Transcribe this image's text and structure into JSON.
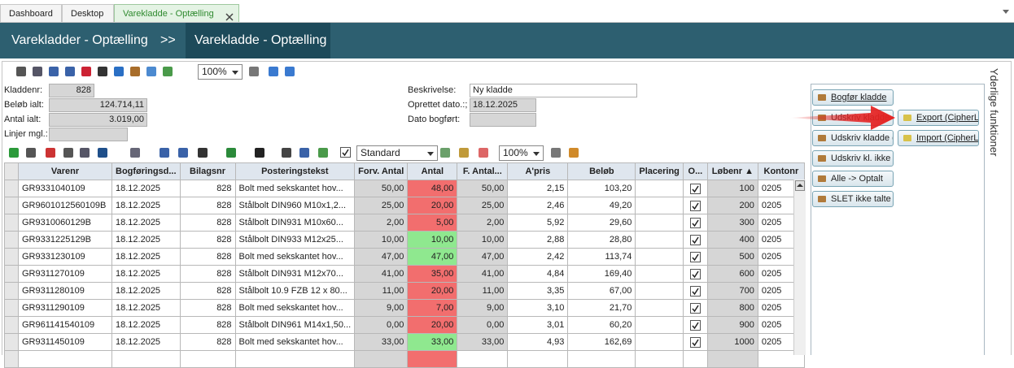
{
  "tabs": [
    {
      "label": "Dashboard"
    },
    {
      "label": "Desktop"
    },
    {
      "label": "Varekladde - Optælling",
      "active": true
    }
  ],
  "breadcrumb": {
    "parent": "Varekladder - Optælling",
    "separator": ">>",
    "current": "Varekladde - Optælling"
  },
  "toolbar": {
    "zoom": "100%"
  },
  "form": {
    "left": [
      {
        "label": "Kladdenr:",
        "value": "828"
      },
      {
        "label": "Beløb ialt:",
        "value": "124.714,11"
      },
      {
        "label": "Antal ialt:",
        "value": "3.019,00"
      },
      {
        "label": "Linjer mgl.:"
      }
    ],
    "right": [
      {
        "label": "Beskrivelse:",
        "value": "Ny kladde"
      },
      {
        "label": "Oprettet dato.:;",
        "value": "18.12.2025"
      },
      {
        "label": "Dato bogført:"
      }
    ]
  },
  "grid_toolbar": {
    "layout": "Standard",
    "zoom": "100%"
  },
  "table": {
    "columns": [
      "Varenr",
      "Bogføringsd...",
      "Bilagsnr",
      "Posteringstekst",
      "Forv. Antal",
      "Antal",
      "F. Antal...",
      "A'pris",
      "Beløb",
      "Placering",
      "O...",
      "Løbenr ▲",
      "Kontonr"
    ],
    "rows": [
      {
        "varenr": "GR9331040109",
        "dato": "18.12.2025",
        "bilagsnr": "828",
        "tekst": "Bolt med sekskantet hov...",
        "forv": "50,00",
        "antal": "48,00",
        "f_antal": "50,00",
        "apris": "2,15",
        "beloeb": "103,20",
        "optalt": true,
        "loebenr": "100",
        "kontonr": "0205",
        "antal_color": "#f26e6e"
      },
      {
        "varenr": "GR9601012560109B",
        "dato": "18.12.2025",
        "bilagsnr": "828",
        "tekst": "Stålbolt DIN960 M10x1,2...",
        "forv": "25,00",
        "antal": "20,00",
        "f_antal": "25,00",
        "apris": "2,46",
        "beloeb": "49,20",
        "optalt": true,
        "loebenr": "200",
        "kontonr": "0205",
        "antal_color": "#f26e6e"
      },
      {
        "varenr": "GR9310060129B",
        "dato": "18.12.2025",
        "bilagsnr": "828",
        "tekst": "Stålbolt DIN931 M10x60...",
        "forv": "2,00",
        "antal": "5,00",
        "f_antal": "2,00",
        "apris": "5,92",
        "beloeb": "29,60",
        "optalt": true,
        "loebenr": "300",
        "kontonr": "0205",
        "antal_color": "#f26e6e"
      },
      {
        "varenr": "GR9331225129B",
        "dato": "18.12.2025",
        "bilagsnr": "828",
        "tekst": "Stålbolt DIN933 M12x25...",
        "forv": "10,00",
        "antal": "10,00",
        "f_antal": "10,00",
        "apris": "2,88",
        "beloeb": "28,80",
        "optalt": true,
        "loebenr": "400",
        "kontonr": "0205",
        "antal_color": "#8fe88f"
      },
      {
        "varenr": "GR9331230109",
        "dato": "18.12.2025",
        "bilagsnr": "828",
        "tekst": "Bolt med sekskantet hov...",
        "forv": "47,00",
        "antal": "47,00",
        "f_antal": "47,00",
        "apris": "2,42",
        "beloeb": "113,74",
        "optalt": true,
        "loebenr": "500",
        "kontonr": "0205",
        "antal_color": "#8fe88f"
      },
      {
        "varenr": "GR9311270109",
        "dato": "18.12.2025",
        "bilagsnr": "828",
        "tekst": "Stålbolt DIN931 M12x70...",
        "forv": "41,00",
        "antal": "35,00",
        "f_antal": "41,00",
        "apris": "4,84",
        "beloeb": "169,40",
        "optalt": true,
        "loebenr": "600",
        "kontonr": "0205",
        "antal_color": "#f26e6e"
      },
      {
        "varenr": "GR9311280109",
        "dato": "18.12.2025",
        "bilagsnr": "828",
        "tekst": "Stålbolt 10.9 FZB 12 x 80...",
        "forv": "11,00",
        "antal": "20,00",
        "f_antal": "11,00",
        "apris": "3,35",
        "beloeb": "67,00",
        "optalt": true,
        "loebenr": "700",
        "kontonr": "0205",
        "antal_color": "#f26e6e"
      },
      {
        "varenr": "GR9311290109",
        "dato": "18.12.2025",
        "bilagsnr": "828",
        "tekst": "Bolt med sekskantet hov...",
        "forv": "9,00",
        "antal": "7,00",
        "f_antal": "9,00",
        "apris": "3,10",
        "beloeb": "21,70",
        "optalt": true,
        "loebenr": "800",
        "kontonr": "0205",
        "antal_color": "#f26e6e"
      },
      {
        "varenr": "GR961141540109",
        "dato": "18.12.2025",
        "bilagsnr": "828",
        "tekst": "Stålbolt DIN961 M14x1,50...",
        "forv": "0,00",
        "antal": "20,00",
        "f_antal": "0,00",
        "apris": "3,01",
        "beloeb": "60,20",
        "optalt": true,
        "loebenr": "900",
        "kontonr": "0205",
        "antal_color": "#f26e6e"
      },
      {
        "varenr": "GR9311450109",
        "dato": "18.12.2025",
        "bilagsnr": "828",
        "tekst": "Bolt med sekskantet hov...",
        "forv": "33,00",
        "antal": "33,00",
        "f_antal": "33,00",
        "apris": "4,93",
        "beloeb": "162,69",
        "optalt": true,
        "loebenr": "1000",
        "kontonr": "0205",
        "antal_color": "#8fe88f"
      }
    ]
  },
  "side_panel": {
    "title": "Yderlige funktioner",
    "buttons": [
      {
        "label": "Bogfør kladde"
      },
      {
        "label": "Udskriv kladde"
      },
      {
        "label": "Udskriv kladde g"
      },
      {
        "label": "Udskriv kl. ikke g"
      },
      {
        "label": "Alle -> Optalt"
      },
      {
        "label": "SLET ikke talte li"
      },
      {
        "label": "Export (CipherLa"
      },
      {
        "label": "Import (CipherLa"
      }
    ]
  }
}
